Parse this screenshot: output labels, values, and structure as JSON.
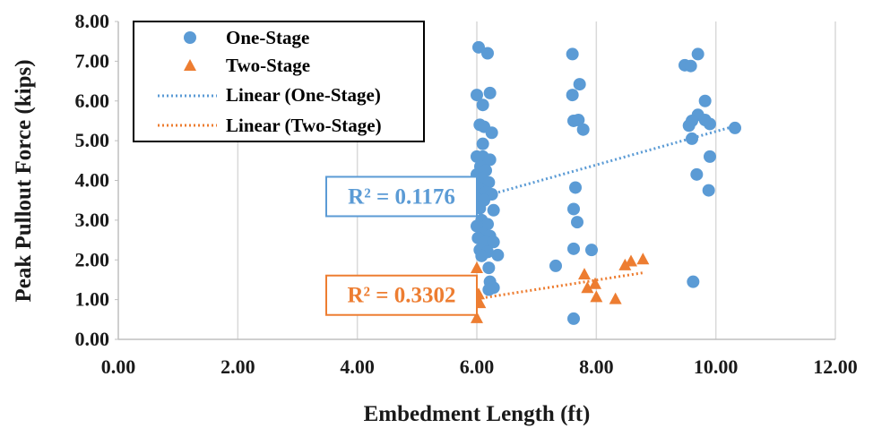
{
  "chart_data": {
    "type": "scatter",
    "xlabel": "Embedment Length (ft)",
    "ylabel": "Peak Pullout Force (kips)",
    "xlim": [
      0,
      12
    ],
    "ylim": [
      0,
      8
    ],
    "x_ticks": [
      "0.00",
      "2.00",
      "4.00",
      "6.00",
      "8.00",
      "10.00",
      "12.00"
    ],
    "y_ticks": [
      "0.00",
      "1.00",
      "2.00",
      "3.00",
      "4.00",
      "5.00",
      "6.00",
      "7.00",
      "8.00"
    ],
    "grid": "vertical",
    "legend_position": "top-left",
    "series": [
      {
        "name": "One-Stage",
        "marker": "circle",
        "color": "#5b9bd5",
        "points": [
          [
            6.03,
            7.35
          ],
          [
            6.18,
            7.2
          ],
          [
            6.0,
            6.15
          ],
          [
            6.22,
            6.2
          ],
          [
            6.1,
            5.9
          ],
          [
            6.05,
            5.4
          ],
          [
            6.12,
            5.35
          ],
          [
            6.25,
            5.2
          ],
          [
            6.1,
            4.92
          ],
          [
            6.0,
            4.6
          ],
          [
            6.1,
            4.6
          ],
          [
            6.22,
            4.52
          ],
          [
            6.06,
            4.35
          ],
          [
            6.15,
            4.25
          ],
          [
            6.0,
            4.15
          ],
          [
            6.08,
            4.05
          ],
          [
            6.2,
            3.95
          ],
          [
            6.05,
            3.8
          ],
          [
            6.15,
            3.7
          ],
          [
            6.25,
            3.65
          ],
          [
            6.0,
            3.55
          ],
          [
            6.12,
            3.5
          ],
          [
            6.28,
            3.25
          ],
          [
            6.05,
            3.3
          ],
          [
            6.08,
            3.0
          ],
          [
            6.18,
            2.9
          ],
          [
            6.0,
            2.85
          ],
          [
            6.1,
            2.65
          ],
          [
            6.22,
            2.6
          ],
          [
            6.02,
            2.55
          ],
          [
            6.15,
            2.45
          ],
          [
            6.28,
            2.45
          ],
          [
            6.05,
            2.25
          ],
          [
            6.18,
            2.2
          ],
          [
            6.08,
            2.1
          ],
          [
            6.35,
            2.12
          ],
          [
            6.2,
            1.8
          ],
          [
            6.22,
            1.45
          ],
          [
            6.28,
            1.3
          ],
          [
            6.2,
            1.25
          ],
          [
            7.6,
            7.18
          ],
          [
            7.6,
            6.15
          ],
          [
            7.72,
            6.42
          ],
          [
            7.62,
            5.5
          ],
          [
            7.7,
            5.52
          ],
          [
            7.78,
            5.28
          ],
          [
            7.65,
            3.82
          ],
          [
            7.62,
            3.28
          ],
          [
            7.68,
            2.95
          ],
          [
            7.62,
            2.28
          ],
          [
            7.92,
            2.25
          ],
          [
            7.32,
            1.85
          ],
          [
            7.62,
            0.52
          ],
          [
            9.48,
            6.9
          ],
          [
            9.58,
            6.88
          ],
          [
            9.7,
            7.18
          ],
          [
            9.82,
            6.0
          ],
          [
            9.7,
            5.65
          ],
          [
            9.6,
            5.5
          ],
          [
            9.82,
            5.52
          ],
          [
            9.55,
            5.38
          ],
          [
            9.9,
            5.42
          ],
          [
            10.32,
            5.32
          ],
          [
            9.6,
            5.05
          ],
          [
            9.9,
            4.6
          ],
          [
            9.68,
            4.15
          ],
          [
            9.88,
            3.75
          ],
          [
            9.62,
            1.45
          ]
        ]
      },
      {
        "name": "Two-Stage",
        "marker": "triangle",
        "color": "#ed7d31",
        "points": [
          [
            6.0,
            1.78
          ],
          [
            6.03,
            1.12
          ],
          [
            6.0,
            0.95
          ],
          [
            6.05,
            0.9
          ],
          [
            6.0,
            0.52
          ],
          [
            7.8,
            1.62
          ],
          [
            7.85,
            1.28
          ],
          [
            7.98,
            1.38
          ],
          [
            8.0,
            1.05
          ],
          [
            8.32,
            1.0
          ],
          [
            8.48,
            1.85
          ],
          [
            8.58,
            1.95
          ],
          [
            8.78,
            2.0
          ]
        ]
      }
    ],
    "trendlines": [
      {
        "name": "Linear (One-Stage)",
        "color": "#5b9bd5",
        "x": [
          6.0,
          10.35
        ],
        "y": [
          3.55,
          5.38
        ],
        "r2_label": "R² = 0.1176"
      },
      {
        "name": "Linear (Two-Stage)",
        "color": "#ed7d31",
        "x": [
          6.0,
          8.8
        ],
        "y": [
          1.02,
          1.68
        ],
        "r2_label": "R² = 0.3302"
      }
    ]
  }
}
